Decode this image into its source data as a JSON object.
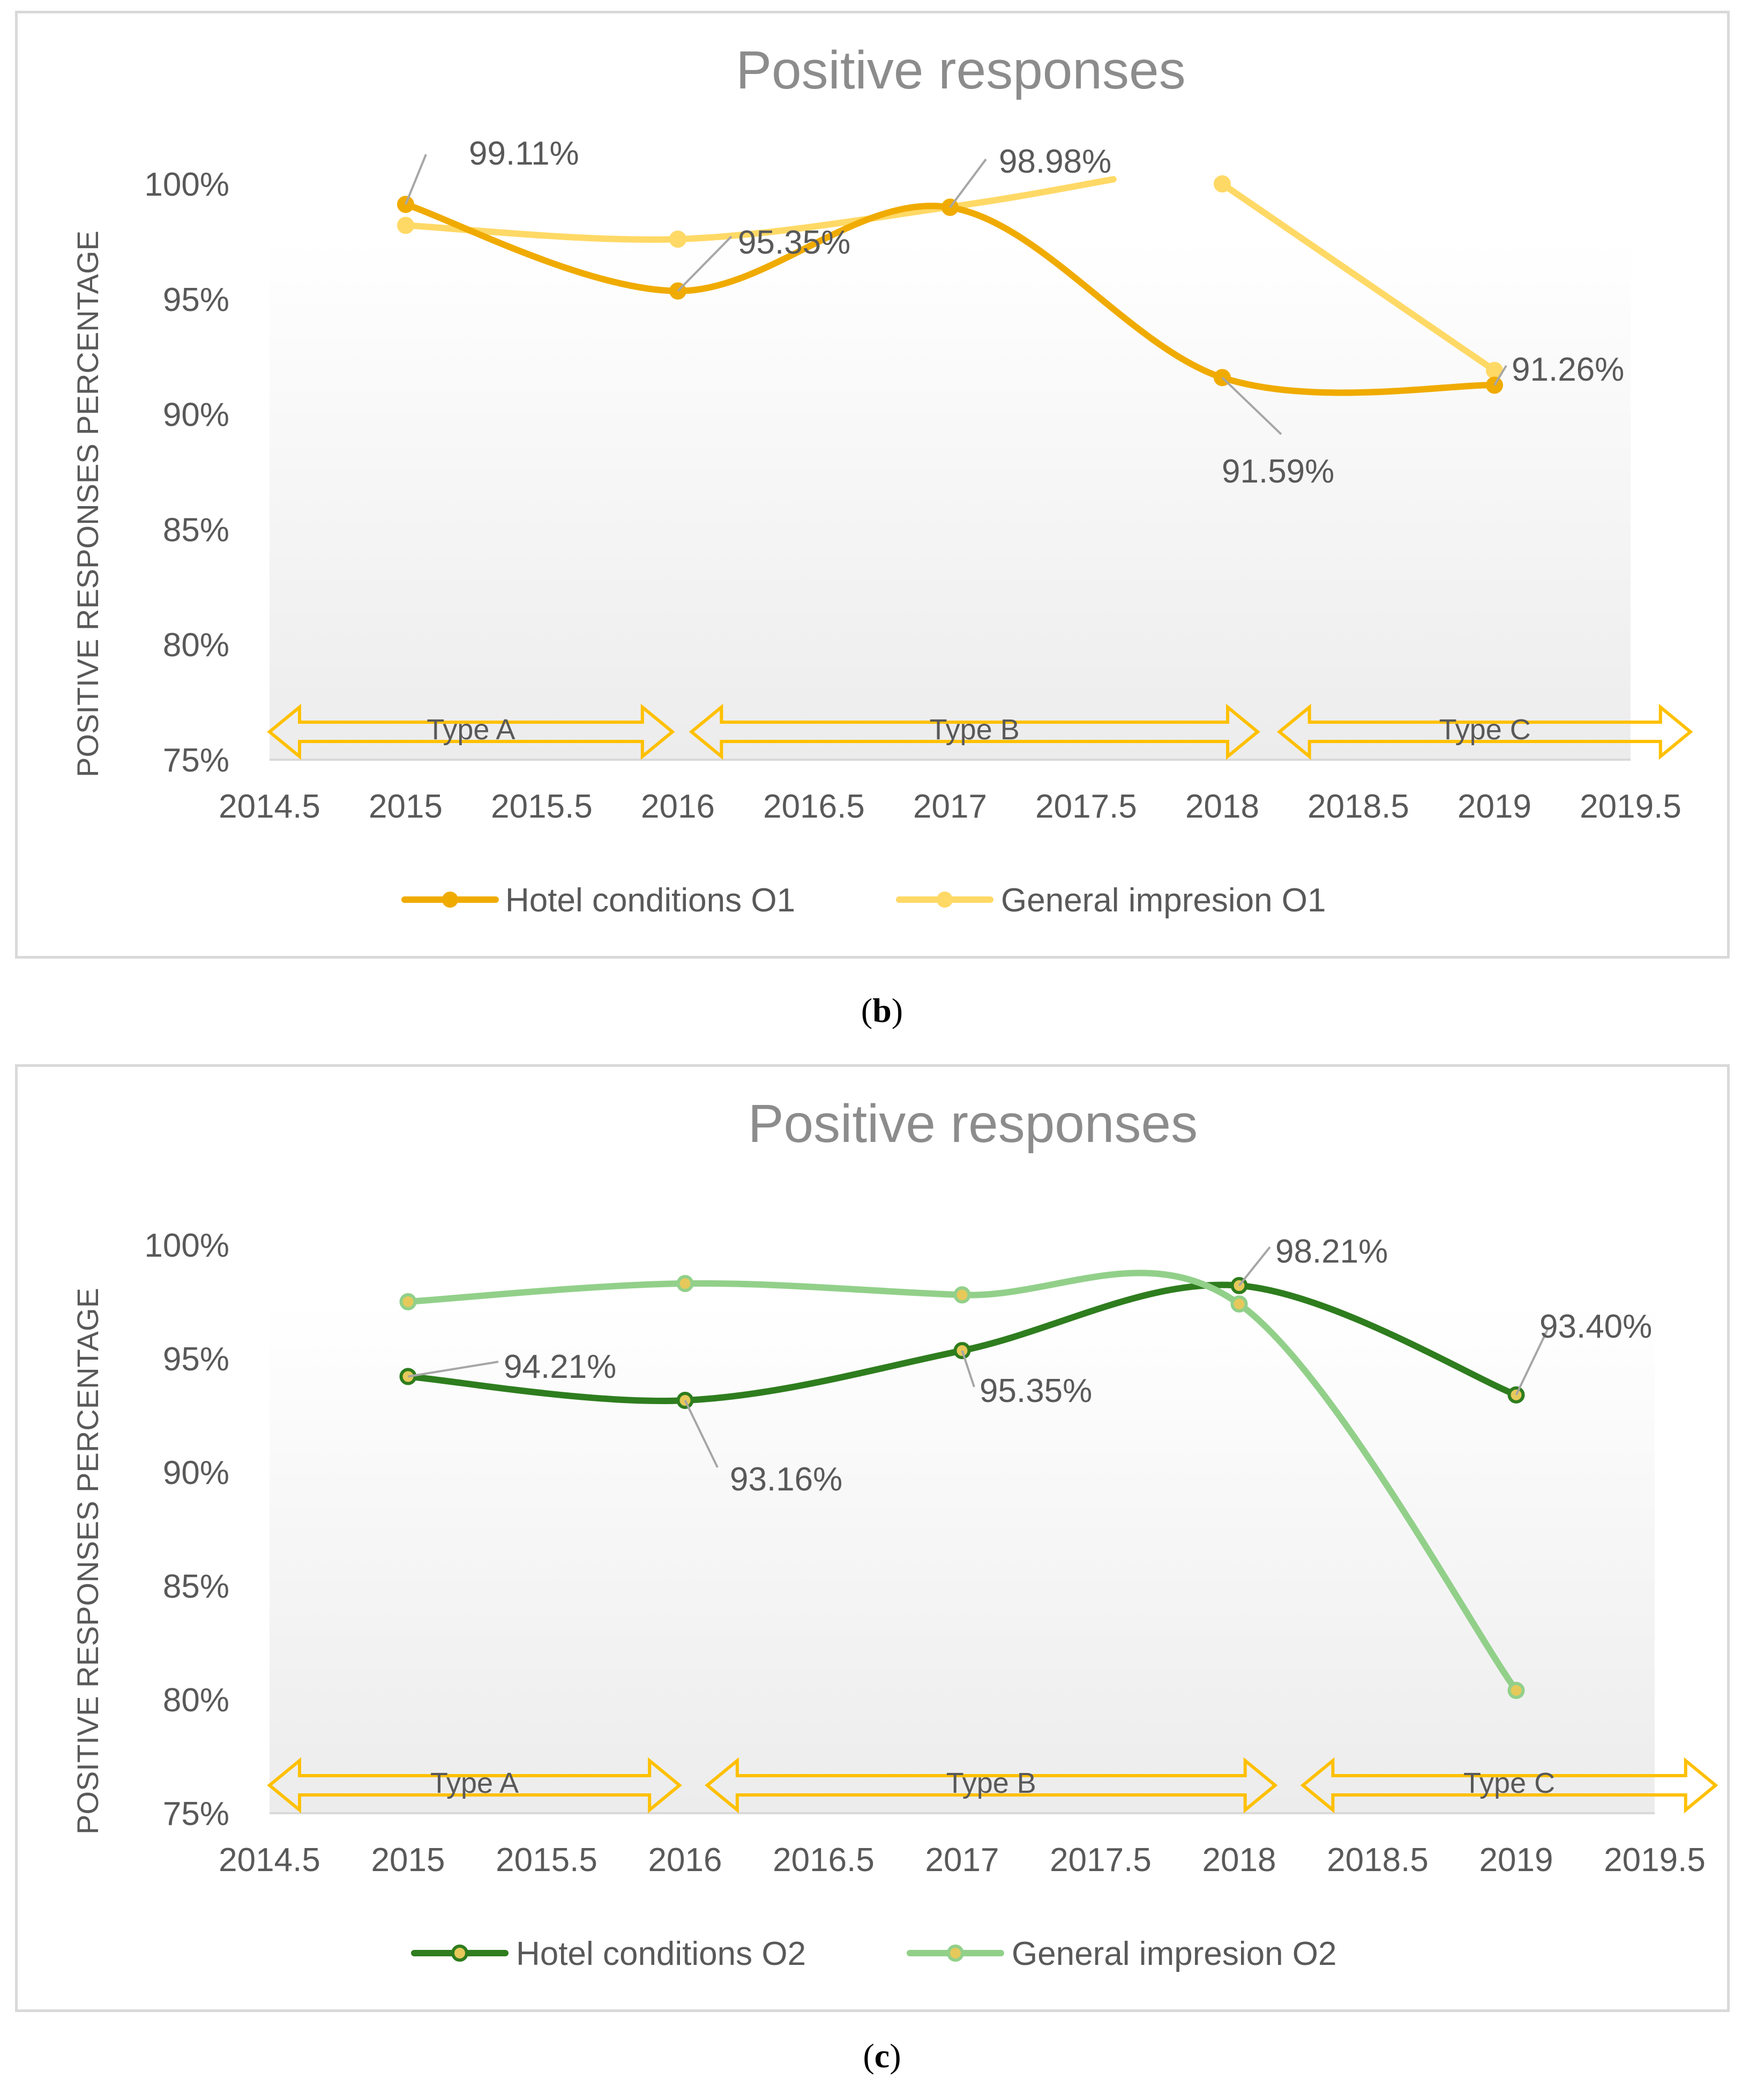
{
  "captions": {
    "b": "b",
    "c": "c"
  },
  "chart_data": [
    {
      "id": "b",
      "type": "line",
      "title": "Positive responses",
      "ylabel": "POSITIVE RESPONSES PERCENTAGE",
      "xlabel": "",
      "xlim": [
        2014.5,
        2019.5
      ],
      "ylim": [
        75,
        100
      ],
      "xticks": [
        "2014.5",
        "2015",
        "2015.5",
        "2016",
        "2016.5",
        "2017",
        "2017.5",
        "2018",
        "2018.5",
        "2019",
        "2019.5"
      ],
      "yticks": [
        "75%",
        "80%",
        "85%",
        "90%",
        "95%",
        "100%"
      ],
      "smooth": true,
      "legend_position": "bottom",
      "regions": [
        {
          "label": "Type A",
          "from": 2014.5,
          "to": 2015.98
        },
        {
          "label": "Type B",
          "from": 2016.05,
          "to": 2018.13
        },
        {
          "label": "Type C",
          "from": 2018.21,
          "to": 2019.72
        }
      ],
      "series": [
        {
          "name": "Hotel conditions O1",
          "color": "#f0ab00",
          "x": [
            2015,
            2016,
            2017,
            2018,
            2019
          ],
          "y": [
            99.11,
            95.35,
            98.98,
            91.59,
            91.26
          ]
        },
        {
          "name": "General impresion O1",
          "color": "#ffd966",
          "segments": [
            {
              "x": [
                2015,
                2016,
                2017,
                2017.6
              ],
              "y": [
                98.2,
                97.6,
                99.0,
                100.2
              ]
            },
            {
              "x": [
                2018,
                2019
              ],
              "y": [
                100.0,
                91.9
              ]
            }
          ],
          "x": [
            2015,
            2016,
            2017,
            2018,
            2019
          ],
          "y": [
            98.2,
            97.6,
            99.0,
            100.0,
            91.9
          ]
        }
      ],
      "annotations": [
        {
          "text": "99.11%",
          "x": 2015,
          "y": 99.11
        },
        {
          "text": "95.35%",
          "x": 2016,
          "y": 95.35
        },
        {
          "text": "98.98%",
          "x": 2017,
          "y": 98.98
        },
        {
          "text": "91.59%",
          "x": 2018,
          "y": 91.59
        },
        {
          "text": "91.26%",
          "x": 2019,
          "y": 91.26
        }
      ]
    },
    {
      "id": "c",
      "type": "line",
      "title": "Positive responses",
      "ylabel": "POSITIVE RESPONSES PERCENTAGE",
      "xlabel": "",
      "xlim": [
        2014.5,
        2019.5
      ],
      "ylim": [
        75,
        100
      ],
      "xticks": [
        "2014.5",
        "2015",
        "2015.5",
        "2016",
        "2016.5",
        "2017",
        "2017.5",
        "2018",
        "2018.5",
        "2019",
        "2019.5"
      ],
      "yticks": [
        "75%",
        "80%",
        "85%",
        "90%",
        "95%",
        "100%"
      ],
      "smooth": true,
      "legend_position": "bottom",
      "regions": [
        {
          "label": "Type A",
          "from": 2014.5,
          "to": 2015.98
        },
        {
          "label": "Type B",
          "from": 2016.08,
          "to": 2018.13
        },
        {
          "label": "Type C",
          "from": 2018.23,
          "to": 2019.72
        }
      ],
      "series": [
        {
          "name": "Hotel conditions O2",
          "color": "#2e7d1e",
          "x": [
            2015,
            2016,
            2017,
            2018,
            2019
          ],
          "y": [
            94.21,
            93.16,
            95.35,
            98.21,
            93.4
          ]
        },
        {
          "name": "General impresion O2",
          "color": "#92d08a",
          "x": [
            2015,
            2016,
            2017,
            2018,
            2019
          ],
          "y": [
            97.5,
            98.3,
            97.8,
            97.4,
            80.4
          ]
        }
      ],
      "annotations": [
        {
          "text": "94.21%",
          "x": 2015,
          "y": 94.21
        },
        {
          "text": "93.16%",
          "x": 2016,
          "y": 93.16
        },
        {
          "text": "95.35%",
          "x": 2017,
          "y": 95.35
        },
        {
          "text": "98.21%",
          "x": 2018,
          "y": 98.21
        },
        {
          "text": "93.40%",
          "x": 2019,
          "y": 93.4
        }
      ]
    }
  ]
}
